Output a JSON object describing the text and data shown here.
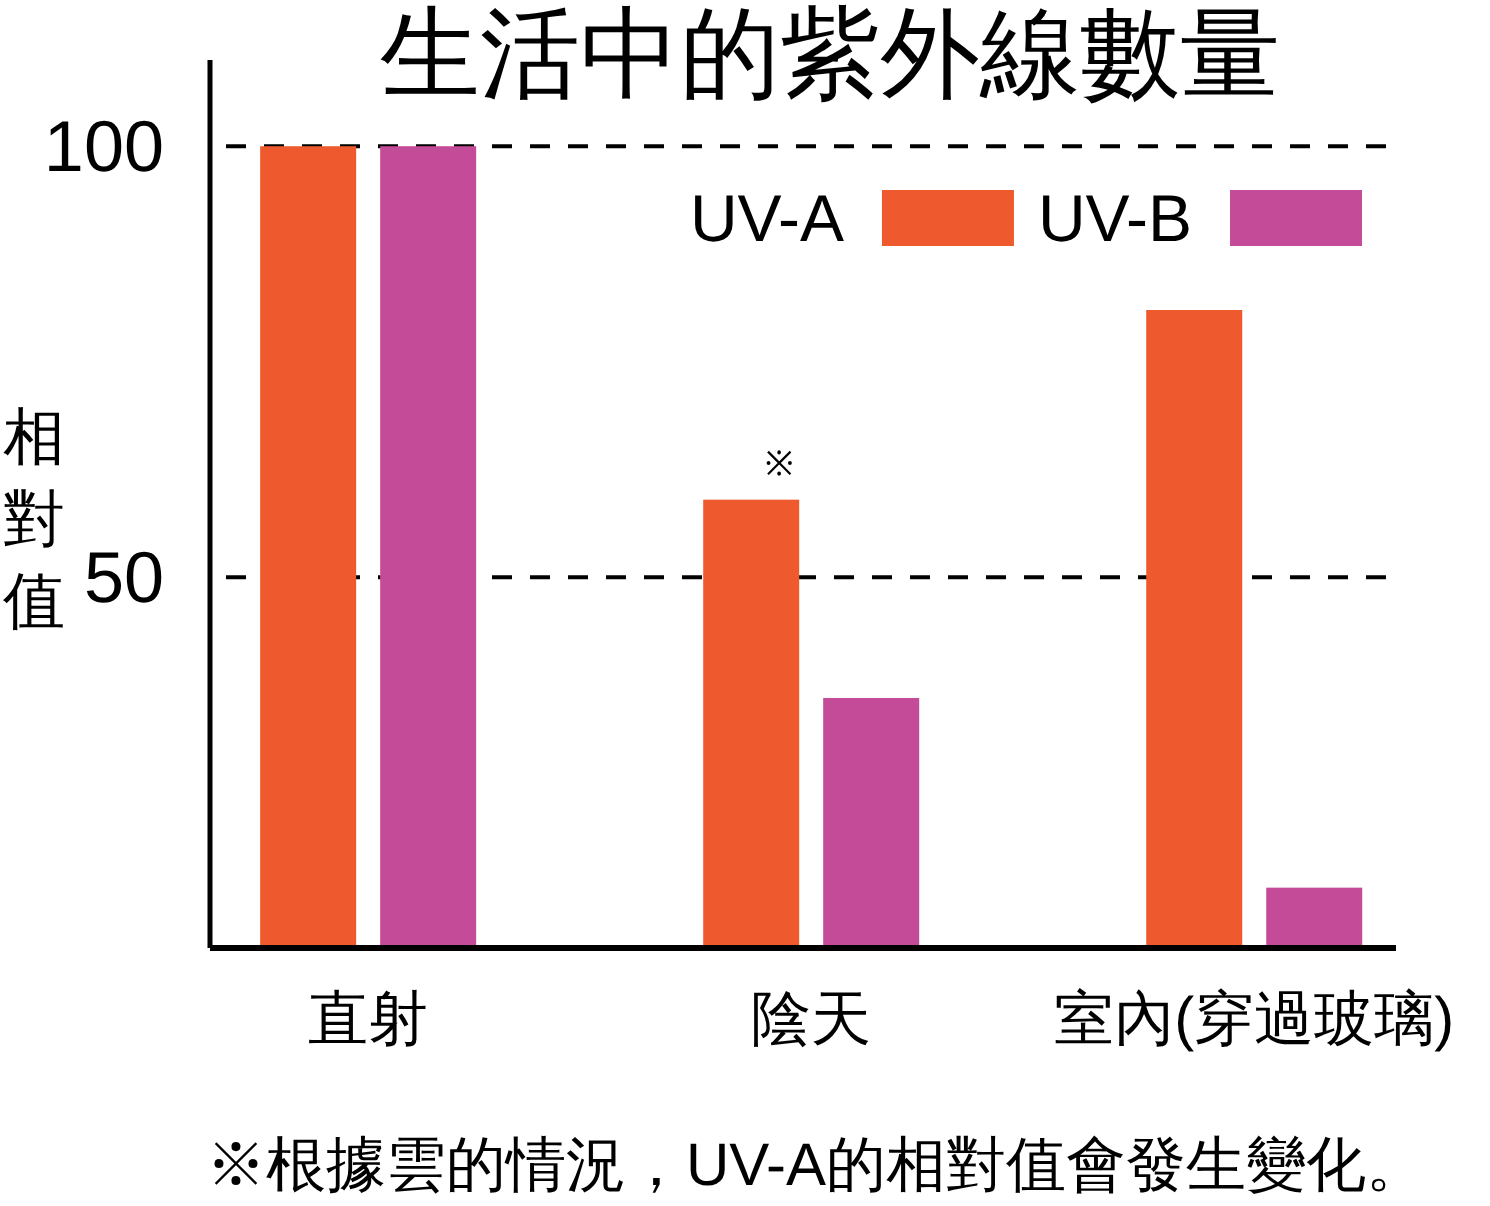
{
  "chart_data": {
    "type": "bar",
    "title": "生活中的紫外線數量",
    "ylabel": "相對值",
    "categories": [
      "直射",
      "陰天",
      "室內(穿過玻璃)"
    ],
    "series": [
      {
        "name": "UV-A",
        "color": "#ee5a2d",
        "values": [
          100,
          59,
          81
        ]
      },
      {
        "name": "UV-B",
        "color": "#c44b98",
        "values": [
          100,
          36,
          14
        ]
      }
    ],
    "ylim": [
      7,
      110
    ],
    "yticks": [
      50,
      100
    ],
    "grid": "y",
    "legend": "top right",
    "annotations": [
      "※",
      "※根據雲的情況，UV-A的相對值會發生變化。"
    ]
  }
}
